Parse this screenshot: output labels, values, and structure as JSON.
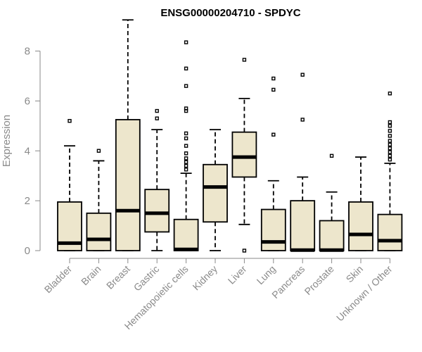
{
  "chart_data": {
    "type": "box",
    "title": "ENSG00000204710 - SPDYC",
    "ylabel": "Expression",
    "ylim": [
      0,
      9.2
    ],
    "yticks": [
      0,
      2,
      4,
      6,
      8
    ],
    "grid": false,
    "categories": [
      "Bladder",
      "Brain",
      "Breast",
      "Gastric",
      "Hematopoietic cells",
      "Kidney",
      "Liver",
      "Lung",
      "Pancreas",
      "Prostate",
      "Skin",
      "Unknown / Other"
    ],
    "boxes": [
      {
        "min": 0,
        "q1": 0,
        "median": 0.3,
        "q3": 1.95,
        "max": 4.2,
        "outliers": [
          5.2
        ]
      },
      {
        "min": 0,
        "q1": 0,
        "median": 0.45,
        "q3": 1.5,
        "max": 3.6,
        "outliers": [
          4.0
        ]
      },
      {
        "min": 0,
        "q1": 0,
        "median": 1.6,
        "q3": 5.25,
        "max": 9.25,
        "outliers": []
      },
      {
        "min": 0,
        "q1": 0.75,
        "median": 1.5,
        "q3": 2.45,
        "max": 4.85,
        "outliers": [
          5.3,
          5.6
        ]
      },
      {
        "min": 0,
        "q1": 0,
        "median": 0.05,
        "q3": 1.25,
        "max": 3.1,
        "outliers": [
          3.25,
          3.4,
          3.55,
          3.7,
          3.9,
          4.2,
          4.5,
          4.7,
          5.6,
          5.7,
          6.6,
          7.3,
          8.35
        ]
      },
      {
        "min": 0,
        "q1": 1.15,
        "median": 2.55,
        "q3": 3.45,
        "max": 4.85,
        "outliers": []
      },
      {
        "min": 1.05,
        "q1": 2.95,
        "median": 3.75,
        "q3": 4.75,
        "max": 6.1,
        "outliers": [
          0,
          7.65
        ]
      },
      {
        "min": 0,
        "q1": 0,
        "median": 0.35,
        "q3": 1.65,
        "max": 2.8,
        "outliers": [
          4.65,
          6.45,
          6.9
        ]
      },
      {
        "min": 0,
        "q1": 0,
        "median": 0.02,
        "q3": 2.0,
        "max": 2.95,
        "outliers": [
          5.25,
          7.05
        ]
      },
      {
        "min": 0,
        "q1": 0,
        "median": 0.02,
        "q3": 1.2,
        "max": 2.35,
        "outliers": [
          3.8
        ]
      },
      {
        "min": 0,
        "q1": 0,
        "median": 0.65,
        "q3": 1.95,
        "max": 3.75,
        "outliers": []
      },
      {
        "min": 0,
        "q1": 0,
        "median": 0.4,
        "q3": 1.45,
        "max": 3.5,
        "outliers": [
          3.65,
          3.8,
          3.95,
          4.1,
          4.25,
          4.4,
          4.6,
          4.8,
          5.0,
          5.15,
          6.3
        ]
      }
    ],
    "colors": {
      "box_fill": "#ede6cc",
      "box_stroke": "#000000",
      "axis": "#8a8a8a"
    }
  }
}
